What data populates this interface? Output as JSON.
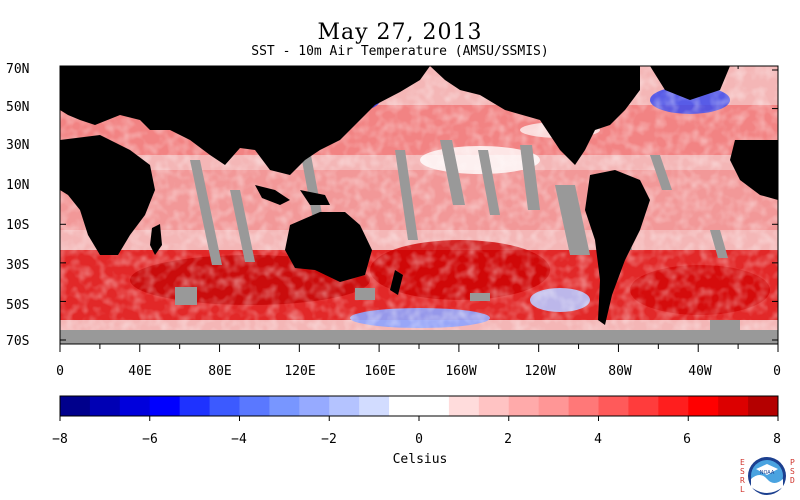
{
  "header": {
    "title": "May 27, 2013",
    "subtitle": "SST - 10m Air Temperature (AMSU/SSMIS)"
  },
  "map": {
    "lat_labels": [
      "70N",
      "50N",
      "30N",
      "10N",
      "10S",
      "30S",
      "50S",
      "70S"
    ],
    "lon_labels": [
      "0",
      "40E",
      "80E",
      "120E",
      "160E",
      "160W",
      "120W",
      "80W",
      "40W",
      "0"
    ],
    "colors": {
      "land": "#000000",
      "missing": "#999999",
      "warm": "#e8141c",
      "cool": "#2a3cf0"
    }
  },
  "colorbar": {
    "ticks": [
      "−8",
      "−6",
      "−4",
      "−2",
      "0",
      "2",
      "4",
      "6",
      "8"
    ],
    "unit": "Celsius",
    "colors": [
      "#00008c",
      "#0000b4",
      "#0000dc",
      "#0000ff",
      "#1e32ff",
      "#3c5aff",
      "#5a78ff",
      "#7896ff",
      "#96aaff",
      "#b4c3ff",
      "#d2dcff",
      "#ffffff",
      "#ffffff",
      "#ffdcdc",
      "#ffc3c3",
      "#ffaaaa",
      "#ff9696",
      "#ff7878",
      "#ff5a5a",
      "#ff3c3c",
      "#ff1e1e",
      "#ff0000",
      "#dc0000",
      "#b40000"
    ]
  },
  "logo": {
    "left_text": "ESRL",
    "right_text": "PSD",
    "emblem": "NOAA",
    "icon": "noaa-logo-icon"
  }
}
